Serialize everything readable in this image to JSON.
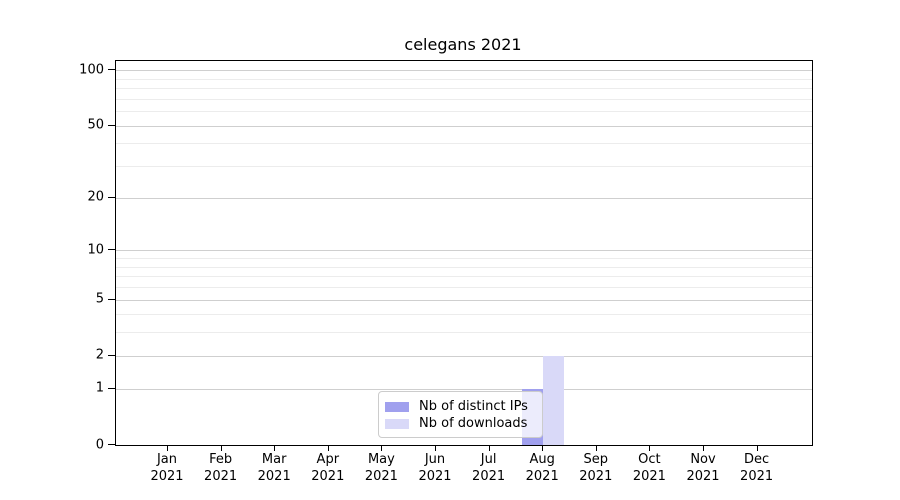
{
  "chart_data": {
    "type": "bar",
    "title": "celegans 2021",
    "categories": [
      {
        "month": "Jan",
        "year": "2021"
      },
      {
        "month": "Feb",
        "year": "2021"
      },
      {
        "month": "Mar",
        "year": "2021"
      },
      {
        "month": "Apr",
        "year": "2021"
      },
      {
        "month": "May",
        "year": "2021"
      },
      {
        "month": "Jun",
        "year": "2021"
      },
      {
        "month": "Jul",
        "year": "2021"
      },
      {
        "month": "Aug",
        "year": "2021"
      },
      {
        "month": "Sep",
        "year": "2021"
      },
      {
        "month": "Oct",
        "year": "2021"
      },
      {
        "month": "Nov",
        "year": "2021"
      },
      {
        "month": "Dec",
        "year": "2021"
      }
    ],
    "series": [
      {
        "name": "Nb of distinct IPs",
        "color": "#a0a0ee",
        "values": [
          0,
          0,
          0,
          0,
          0,
          0,
          0,
          1,
          0,
          0,
          0,
          0
        ]
      },
      {
        "name": "Nb of downloads",
        "color": "#d9d9f8",
        "values": [
          0,
          0,
          0,
          0,
          0,
          0,
          0,
          2,
          0,
          0,
          0,
          0
        ]
      }
    ],
    "y_axis": {
      "scale": "log1p",
      "ylim": [
        0,
        112
      ],
      "major_ticks": [
        0,
        1,
        2,
        5,
        10,
        20,
        50,
        100
      ],
      "minor_gridlines": [
        3,
        4,
        6,
        7,
        8,
        9,
        30,
        40,
        60,
        70,
        80,
        90
      ]
    },
    "legend": {
      "location": "lower center",
      "entries": [
        "Nb of distinct IPs",
        "Nb of downloads"
      ]
    },
    "grid": "on"
  },
  "colors": {
    "grid_major": "#cfcfcf",
    "grid_minor": "#ececec",
    "spine": "#000000",
    "text": "#000000",
    "legend_border": "#cccccc",
    "background": "#ffffff"
  }
}
